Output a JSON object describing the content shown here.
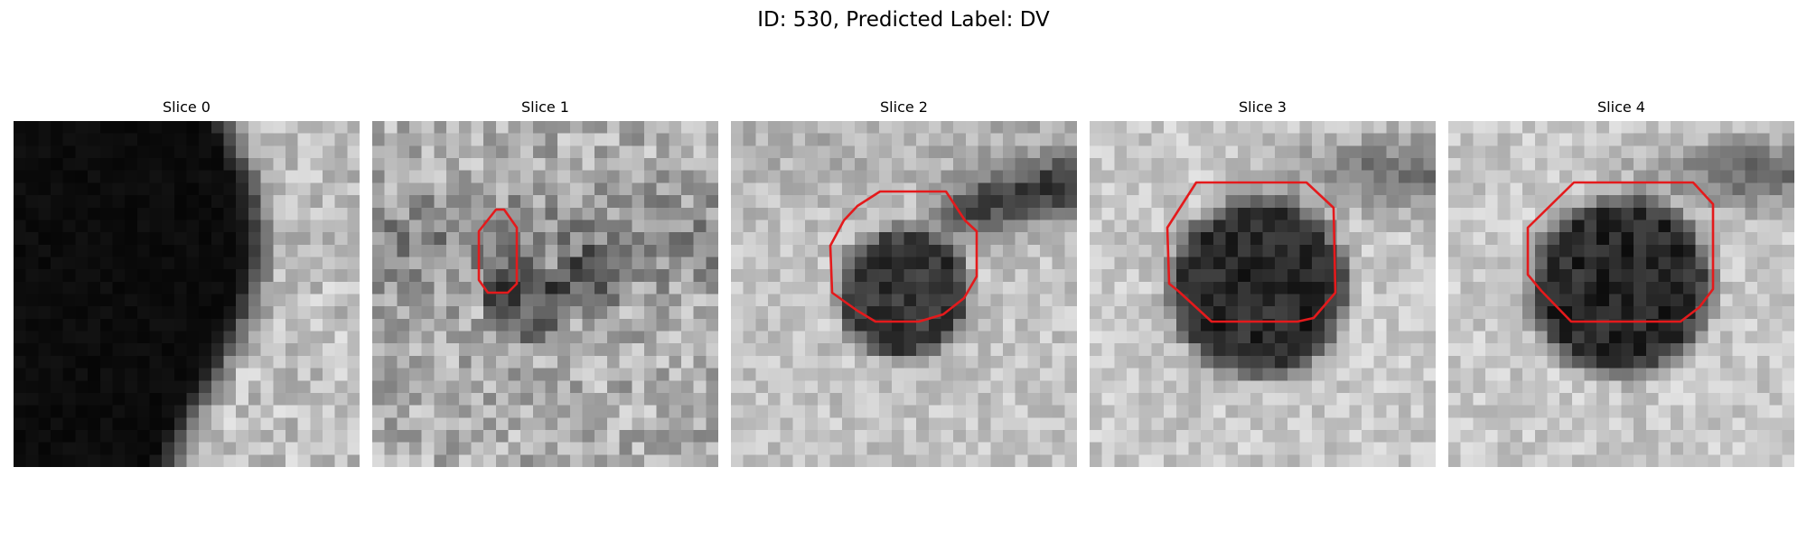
{
  "figure": {
    "title": "ID: 530, Predicted Label: DV"
  },
  "panels": [
    {
      "title": "Slice 0",
      "has_contour": false
    },
    {
      "title": "Slice 1",
      "has_contour": true
    },
    {
      "title": "Slice 2",
      "has_contour": true
    },
    {
      "title": "Slice 3",
      "has_contour": true
    },
    {
      "title": "Slice 4",
      "has_contour": true
    }
  ],
  "colors": {
    "contour": "#e41a1c",
    "background": "#ffffff",
    "colormap": "gray"
  }
}
